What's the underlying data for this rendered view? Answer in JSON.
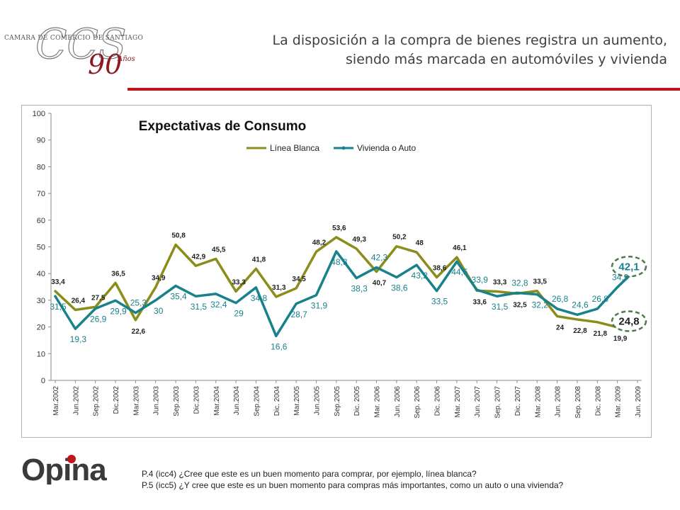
{
  "header": {
    "logo_lines": {
      "chamber": "CAMARA DE COMERCIO DE SANTIAGO",
      "letters": "CCS",
      "anniversary_number": "90",
      "anniversary_word": "Años"
    },
    "title_line1": "La disposición a la compra de bienes registra un aumento,",
    "title_line2": "siendo más marcada en automóviles y vivienda"
  },
  "footer": {
    "brand": "Opina",
    "question_1": "P.4  (icc4) ¿Cree que este es un buen momento para comprar, por ejemplo, línea blanca?",
    "question_2": "P.5  (icc5) ¿Y cree que este es un buen momento para compras más importantes, como un auto o una vivienda?"
  },
  "colors": {
    "accent_red": "#c0141b",
    "linea_blanca": "#8c8c1a",
    "vivienda_auto": "#17818c",
    "highlight_ring": "#4e7a4e"
  },
  "chart_data": {
    "type": "line",
    "title": "Expectativas de Consumo",
    "xlabel": "",
    "ylabel": "",
    "ylim": [
      0,
      100
    ],
    "yticks": [
      "0",
      "10",
      "20",
      "30",
      "40",
      "50",
      "60",
      "70",
      "80",
      "90",
      "100"
    ],
    "grid": false,
    "legend_position": "top",
    "x_tick_labels": [
      "Mar.2002",
      "Jun.2002",
      "Sep.2002",
      "Dic.2002",
      "Mar.2003",
      "Jun.2003",
      "Sep.2003",
      "Dic.2003",
      "Mar.2004",
      "Jun.2004",
      "Sep.2004",
      "Dic. 2004",
      "Mar.2005",
      "Jun.2005",
      "Sep.2005",
      "Dic. 2005",
      "Mar. 2006",
      "Jun. 2006",
      "Sep. 2006",
      "Dic. 2006",
      "Mar. 2007",
      "Jun. 2007",
      "Sep. 2007",
      "Dic. 2007",
      "Mar. 2008",
      "Jun. 2008",
      "Sep. 2008",
      "Dic. 2008",
      "Mar. 2009",
      "Jun. 2009"
    ],
    "series": [
      {
        "name": "Línea Blanca",
        "values": [
          33.4,
          26.4,
          27.5,
          36.5,
          22.6,
          34.9,
          50.8,
          42.9,
          45.5,
          33.3,
          41.8,
          31.3,
          34.5,
          48.2,
          53.6,
          49.3,
          40.7,
          50.2,
          48,
          38.6,
          46.1,
          33.6,
          33.3,
          32.5,
          33.5,
          24,
          22.8,
          21.8,
          19.9,
          24.8
        ],
        "labels": [
          "33,4",
          "26,4",
          "27,5",
          "36,5",
          "22,6",
          "34,9",
          "50,8",
          "42,9",
          "45,5",
          "33,3",
          "41,8",
          "31,3",
          "34,5",
          "48,2",
          "53,6",
          "49,3",
          "40,7",
          "50,2",
          "48",
          "38,6",
          "46,1",
          "33,6",
          "33,3",
          "32,5",
          "33,5",
          "24",
          "22,8",
          "21,8",
          "19,9",
          "24,8"
        ]
      },
      {
        "name": "Vivienda o Auto",
        "values": [
          31.5,
          19.3,
          26.9,
          29.9,
          25.3,
          30,
          35.4,
          31.5,
          32.4,
          29,
          34.8,
          16.6,
          28.7,
          31.9,
          48.3,
          38.3,
          42.3,
          38.6,
          43.2,
          33.5,
          44.5,
          33.9,
          31.5,
          32.8,
          32.2,
          26.8,
          24.6,
          26.8,
          34.9,
          42.1
        ],
        "labels": [
          "31,5",
          "19,3",
          "26,9",
          "29,9",
          "25,3",
          "30",
          "35,4",
          "31,5",
          "32,4",
          "29",
          "34,8",
          "16,6",
          "28,7",
          "31,9",
          "48,3",
          "38,3",
          "42,3",
          "38,6",
          "43,2",
          "33,5",
          "44,5",
          "33,9",
          "31,5",
          "32,8",
          "32,2",
          "26,8",
          "24,6",
          "26,8",
          "34,9",
          "42,1"
        ]
      }
    ]
  }
}
